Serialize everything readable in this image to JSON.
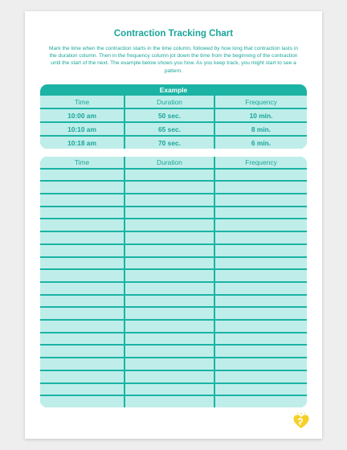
{
  "document": {
    "title": "Contraction Tracking Chart",
    "intro": "Mark the time when the contraction starts in the time column, followed by how long that contraction lasts in the duration column. Then in the frequency column jot down the time from the beginning of the contraction until the start of the next. The example below shows you how. As you keep track, you might start to see a pattern."
  },
  "example": {
    "label": "Example",
    "headers": [
      "Time",
      "Duration",
      "Frequency"
    ],
    "rows": [
      [
        "10:00 am",
        "50 sec.",
        "10 min."
      ],
      [
        "10:10 am",
        "65 sec.",
        "8 min."
      ],
      [
        "10:18 am",
        "70 sec.",
        "6 min."
      ]
    ]
  },
  "tracker": {
    "headers": [
      "Time",
      "Duration",
      "Frequency"
    ],
    "blank_rows": 19
  },
  "colors": {
    "accent": "#1aa59a",
    "band": "#1bb3a4",
    "cell": "#bfeeea",
    "logo": "#f6d02a"
  },
  "logo_icon": "pampers-heart-logo-icon"
}
